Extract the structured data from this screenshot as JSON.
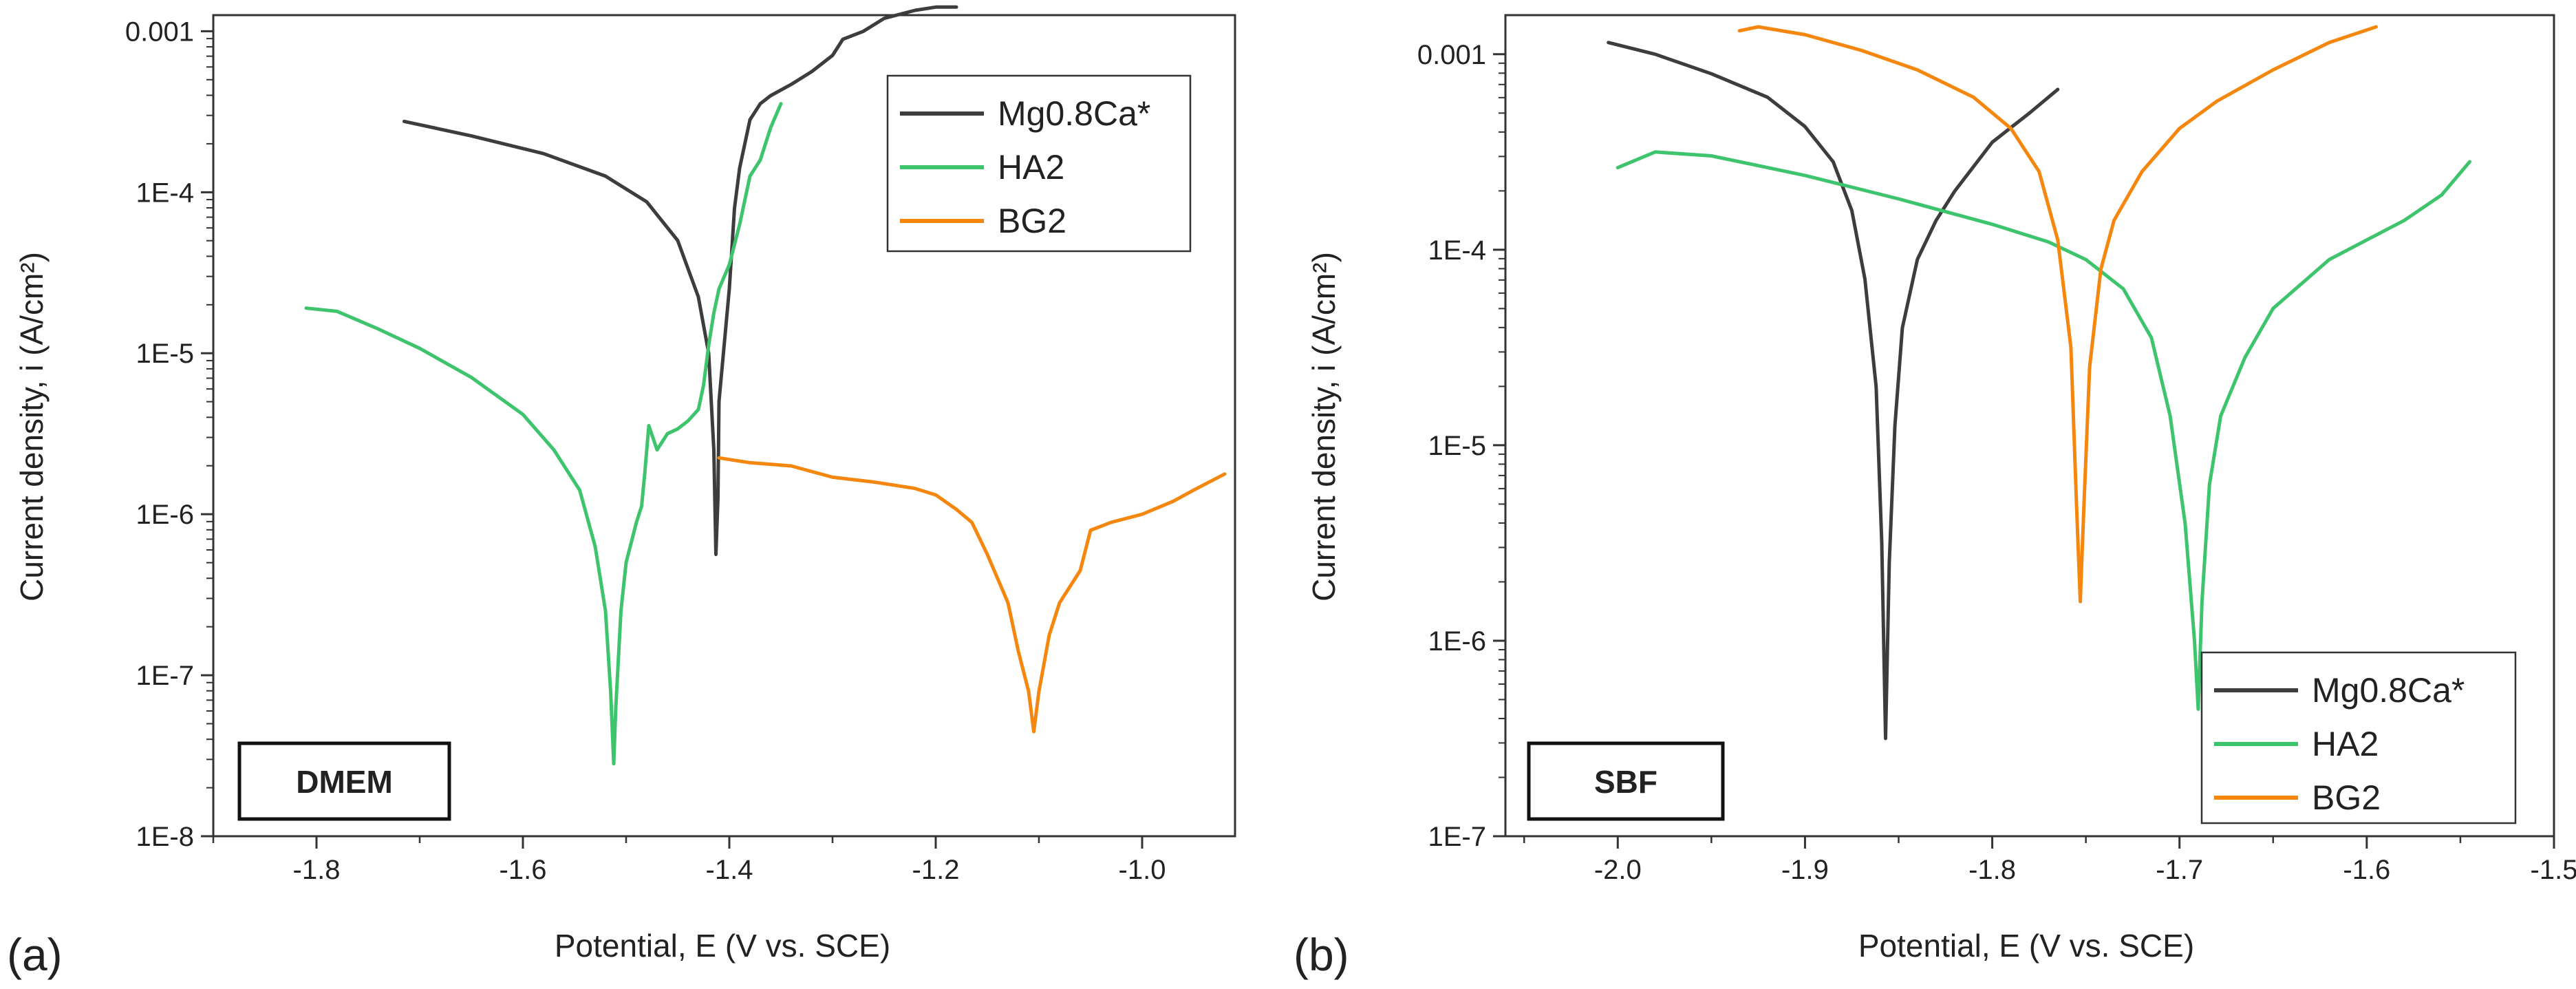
{
  "colors": {
    "mg": "#3d3d3d",
    "ha": "#3ec46d",
    "bg": "#f5870f",
    "axis": "#333333",
    "text": "#222222"
  },
  "chart_data": [
    {
      "type": "line",
      "panel_label": "(a)",
      "medium_label": "DMEM",
      "xlabel": "Potential, E (V vs. SCE)",
      "ylabel": "Current density, i (A/cm²)",
      "xlim": [
        -1.9,
        -0.91
      ],
      "xticks": [
        -1.8,
        -1.6,
        -1.4,
        -1.2,
        -1.0
      ],
      "xtick_labels": [
        "-1.8",
        "-1.6",
        "-1.4",
        "-1.2",
        "-1.0"
      ],
      "y_scale": "log",
      "ylim_exp": [
        -8,
        -2.9
      ],
      "yticks_exp": [
        -8,
        -7,
        -6,
        -5,
        -4,
        -3
      ],
      "ytick_labels": [
        "1E-8",
        "1E-7",
        "1E-6",
        "1E-5",
        "1E-4",
        "0.001"
      ],
      "legend_position": "top-right",
      "series": [
        {
          "name": "Mg0.8Ca*",
          "color_key": "mg",
          "points": [
            [
              -1.715,
              -3.56
            ],
            [
              -1.65,
              -3.65
            ],
            [
              -1.58,
              -3.76
            ],
            [
              -1.52,
              -3.9
            ],
            [
              -1.48,
              -4.06
            ],
            [
              -1.45,
              -4.3
            ],
            [
              -1.43,
              -4.65
            ],
            [
              -1.42,
              -5.0
            ],
            [
              -1.415,
              -5.6
            ],
            [
              -1.413,
              -6.25
            ],
            [
              -1.411,
              -5.9
            ],
            [
              -1.41,
              -5.3
            ],
            [
              -1.405,
              -4.95
            ],
            [
              -1.4,
              -4.6
            ],
            [
              -1.395,
              -4.1
            ],
            [
              -1.39,
              -3.85
            ],
            [
              -1.38,
              -3.55
            ],
            [
              -1.37,
              -3.45
            ],
            [
              -1.36,
              -3.4
            ],
            [
              -1.34,
              -3.33
            ],
            [
              -1.32,
              -3.25
            ],
            [
              -1.3,
              -3.15
            ],
            [
              -1.29,
              -3.05
            ],
            [
              -1.27,
              -3.0
            ],
            [
              -1.25,
              -2.92
            ],
            [
              -1.22,
              -2.87
            ],
            [
              -1.2,
              -2.85
            ],
            [
              -1.18,
              -2.85
            ]
          ]
        },
        {
          "name": "HA2",
          "color_key": "ha",
          "points": [
            [
              -1.81,
              -4.72
            ],
            [
              -1.78,
              -4.74
            ],
            [
              -1.74,
              -4.85
            ],
            [
              -1.7,
              -4.97
            ],
            [
              -1.65,
              -5.15
            ],
            [
              -1.6,
              -5.38
            ],
            [
              -1.57,
              -5.6
            ],
            [
              -1.545,
              -5.85
            ],
            [
              -1.53,
              -6.2
            ],
            [
              -1.52,
              -6.6
            ],
            [
              -1.515,
              -7.1
            ],
            [
              -1.512,
              -7.55
            ],
            [
              -1.51,
              -7.2
            ],
            [
              -1.505,
              -6.6
            ],
            [
              -1.5,
              -6.3
            ],
            [
              -1.49,
              -6.05
            ],
            [
              -1.485,
              -5.95
            ],
            [
              -1.482,
              -5.75
            ],
            [
              -1.478,
              -5.45
            ],
            [
              -1.47,
              -5.6
            ],
            [
              -1.46,
              -5.5
            ],
            [
              -1.45,
              -5.47
            ],
            [
              -1.44,
              -5.42
            ],
            [
              -1.43,
              -5.35
            ],
            [
              -1.425,
              -5.2
            ],
            [
              -1.42,
              -4.95
            ],
            [
              -1.415,
              -4.75
            ],
            [
              -1.41,
              -4.6
            ],
            [
              -1.4,
              -4.45
            ],
            [
              -1.39,
              -4.2
            ],
            [
              -1.38,
              -3.9
            ],
            [
              -1.37,
              -3.8
            ],
            [
              -1.36,
              -3.6
            ],
            [
              -1.35,
              -3.45
            ]
          ]
        },
        {
          "name": "BG2",
          "color_key": "bg",
          "points": [
            [
              -1.41,
              -5.65
            ],
            [
              -1.38,
              -5.68
            ],
            [
              -1.34,
              -5.7
            ],
            [
              -1.3,
              -5.77
            ],
            [
              -1.26,
              -5.8
            ],
            [
              -1.22,
              -5.84
            ],
            [
              -1.2,
              -5.88
            ],
            [
              -1.18,
              -5.97
            ],
            [
              -1.165,
              -6.05
            ],
            [
              -1.15,
              -6.25
            ],
            [
              -1.13,
              -6.55
            ],
            [
              -1.12,
              -6.85
            ],
            [
              -1.11,
              -7.1
            ],
            [
              -1.105,
              -7.35
            ],
            [
              -1.1,
              -7.1
            ],
            [
              -1.09,
              -6.75
            ],
            [
              -1.08,
              -6.55
            ],
            [
              -1.06,
              -6.35
            ],
            [
              -1.05,
              -6.1
            ],
            [
              -1.03,
              -6.05
            ],
            [
              -1.0,
              -6.0
            ],
            [
              -0.97,
              -5.92
            ],
            [
              -0.95,
              -5.85
            ],
            [
              -0.92,
              -5.75
            ]
          ]
        }
      ]
    },
    {
      "type": "line",
      "panel_label": "(b)",
      "medium_label": "SBF",
      "xlabel": "Potential, E (V vs. SCE)",
      "ylabel": "Current density, i (A/cm²)",
      "xlim": [
        -2.06,
        -1.5
      ],
      "xticks": [
        -2.0,
        -1.9,
        -1.8,
        -1.7,
        -1.6,
        -1.5
      ],
      "xtick_labels": [
        "-2.0",
        "-1.9",
        "-1.8",
        "-1.7",
        "-1.6",
        "-1.5"
      ],
      "y_scale": "log",
      "ylim_exp": [
        -7,
        -2.8
      ],
      "yticks_exp": [
        -7,
        -6,
        -5,
        -4,
        -3
      ],
      "ytick_labels": [
        "1E-7",
        "1E-6",
        "1E-5",
        "1E-4",
        "0.001"
      ],
      "legend_position": "bottom-right",
      "series": [
        {
          "name": "Mg0.8Ca*",
          "color_key": "mg",
          "points": [
            [
              -2.005,
              -2.94
            ],
            [
              -1.98,
              -3.0
            ],
            [
              -1.95,
              -3.1
            ],
            [
              -1.92,
              -3.22
            ],
            [
              -1.9,
              -3.37
            ],
            [
              -1.885,
              -3.55
            ],
            [
              -1.875,
              -3.8
            ],
            [
              -1.868,
              -4.15
            ],
            [
              -1.862,
              -4.7
            ],
            [
              -1.859,
              -5.5
            ],
            [
              -1.857,
              -6.5
            ],
            [
              -1.855,
              -5.6
            ],
            [
              -1.852,
              -4.9
            ],
            [
              -1.848,
              -4.4
            ],
            [
              -1.84,
              -4.05
            ],
            [
              -1.83,
              -3.85
            ],
            [
              -1.82,
              -3.7
            ],
            [
              -1.8,
              -3.45
            ],
            [
              -1.78,
              -3.3
            ],
            [
              -1.765,
              -3.18
            ]
          ]
        },
        {
          "name": "HA2",
          "color_key": "ha",
          "points": [
            [
              -2.0,
              -3.58
            ],
            [
              -1.98,
              -3.5
            ],
            [
              -1.95,
              -3.52
            ],
            [
              -1.9,
              -3.62
            ],
            [
              -1.85,
              -3.74
            ],
            [
              -1.8,
              -3.87
            ],
            [
              -1.77,
              -3.96
            ],
            [
              -1.75,
              -4.05
            ],
            [
              -1.73,
              -4.2
            ],
            [
              -1.715,
              -4.45
            ],
            [
              -1.705,
              -4.85
            ],
            [
              -1.697,
              -5.4
            ],
            [
              -1.692,
              -6.0
            ],
            [
              -1.69,
              -6.35
            ],
            [
              -1.688,
              -5.8
            ],
            [
              -1.684,
              -5.2
            ],
            [
              -1.678,
              -4.85
            ],
            [
              -1.665,
              -4.55
            ],
            [
              -1.65,
              -4.3
            ],
            [
              -1.62,
              -4.05
            ],
            [
              -1.58,
              -3.85
            ],
            [
              -1.56,
              -3.72
            ],
            [
              -1.545,
              -3.55
            ]
          ]
        },
        {
          "name": "BG2",
          "color_key": "bg",
          "points": [
            [
              -1.935,
              -2.88
            ],
            [
              -1.925,
              -2.86
            ],
            [
              -1.9,
              -2.9
            ],
            [
              -1.87,
              -2.98
            ],
            [
              -1.84,
              -3.08
            ],
            [
              -1.81,
              -3.22
            ],
            [
              -1.79,
              -3.38
            ],
            [
              -1.775,
              -3.6
            ],
            [
              -1.765,
              -3.95
            ],
            [
              -1.758,
              -4.5
            ],
            [
              -1.755,
              -5.3
            ],
            [
              -1.753,
              -5.8
            ],
            [
              -1.751,
              -5.3
            ],
            [
              -1.748,
              -4.6
            ],
            [
              -1.742,
              -4.1
            ],
            [
              -1.735,
              -3.85
            ],
            [
              -1.72,
              -3.6
            ],
            [
              -1.7,
              -3.38
            ],
            [
              -1.68,
              -3.24
            ],
            [
              -1.65,
              -3.08
            ],
            [
              -1.62,
              -2.94
            ],
            [
              -1.595,
              -2.86
            ]
          ]
        }
      ]
    }
  ]
}
